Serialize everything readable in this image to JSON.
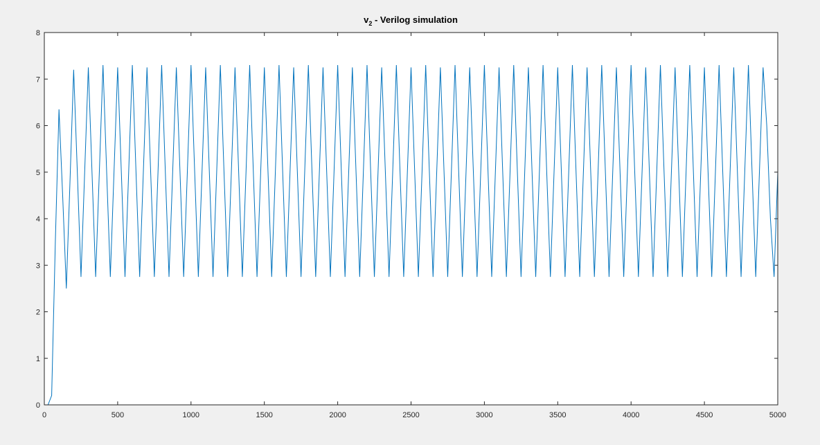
{
  "chart_data": {
    "type": "line",
    "title": "v",
    "title_subscript": "2",
    "title_rest": " - Verilog simulation",
    "xlim": [
      0,
      5000
    ],
    "ylim": [
      0,
      8
    ],
    "xticks": [
      0,
      500,
      1000,
      1500,
      2000,
      2500,
      3000,
      3500,
      4000,
      4500,
      5000
    ],
    "yticks": [
      0,
      1,
      2,
      3,
      4,
      5,
      6,
      7,
      8
    ],
    "color": "#0072bd",
    "x": [
      0,
      25,
      50,
      75,
      100,
      125,
      150,
      175,
      200,
      225,
      250,
      275,
      300,
      325,
      350,
      375,
      400,
      425,
      450,
      475,
      500,
      525,
      550,
      575,
      600,
      625,
      650,
      675,
      700,
      725,
      750,
      775,
      800,
      825,
      850,
      875,
      900,
      925,
      950,
      975,
      1000,
      1025,
      1050,
      1075,
      1100,
      1125,
      1150,
      1175,
      1200,
      1225,
      1250,
      1275,
      1300,
      1325,
      1350,
      1375,
      1400,
      1425,
      1450,
      1475,
      1500,
      1525,
      1550,
      1575,
      1600,
      1625,
      1650,
      1675,
      1700,
      1725,
      1750,
      1775,
      1800,
      1825,
      1850,
      1875,
      1900,
      1925,
      1950,
      1975,
      2000,
      2025,
      2050,
      2075,
      2100,
      2125,
      2150,
      2175,
      2200,
      2225,
      2250,
      2275,
      2300,
      2325,
      2350,
      2375,
      2400,
      2425,
      2450,
      2475,
      2500,
      2525,
      2550,
      2575,
      2600,
      2625,
      2650,
      2675,
      2700,
      2725,
      2750,
      2775,
      2800,
      2825,
      2850,
      2875,
      2900,
      2925,
      2950,
      2975,
      3000,
      3025,
      3050,
      3075,
      3100,
      3125,
      3150,
      3175,
      3200,
      3225,
      3250,
      3275,
      3300,
      3325,
      3350,
      3375,
      3400,
      3425,
      3450,
      3475,
      3500,
      3525,
      3550,
      3575,
      3600,
      3625,
      3650,
      3675,
      3700,
      3725,
      3750,
      3775,
      3800,
      3825,
      3850,
      3875,
      3900,
      3925,
      3950,
      3975,
      4000,
      4025,
      4050,
      4075,
      4100,
      4125,
      4150,
      4175,
      4200,
      4225,
      4250,
      4275,
      4300,
      4325,
      4350,
      4375,
      4400,
      4425,
      4450,
      4475,
      4500,
      4525,
      4550,
      4575,
      4600,
      4625,
      4650,
      4675,
      4700,
      4725,
      4750,
      4775,
      4800,
      4825,
      4850,
      4875,
      4900,
      4925,
      4950,
      4975,
      5000
    ],
    "values": [
      0,
      0,
      0.2,
      3.5,
      6.35,
      4.5,
      2.5,
      4.8,
      7.2,
      5,
      2.75,
      5,
      7.25,
      5,
      2.75,
      5,
      7.3,
      5,
      2.75,
      5,
      7.25,
      5,
      2.75,
      5,
      7.3,
      5,
      2.75,
      5,
      7.25,
      5,
      2.75,
      5,
      7.3,
      5,
      2.75,
      5,
      7.25,
      5,
      2.75,
      5,
      7.3,
      5,
      2.75,
      5,
      7.25,
      5,
      2.75,
      5,
      7.3,
      5,
      2.75,
      5,
      7.25,
      5,
      2.75,
      5,
      7.3,
      5,
      2.75,
      5,
      7.25,
      5,
      2.75,
      5,
      7.3,
      5,
      2.75,
      5,
      7.25,
      5,
      2.75,
      5,
      7.3,
      5,
      2.75,
      5,
      7.25,
      5,
      2.75,
      5,
      7.3,
      5,
      2.75,
      5,
      7.25,
      5,
      2.75,
      5,
      7.3,
      5,
      2.75,
      5,
      7.25,
      5,
      2.75,
      5,
      7.3,
      5,
      2.75,
      5,
      7.25,
      5,
      2.75,
      5,
      7.3,
      5,
      2.75,
      5,
      7.25,
      5,
      2.75,
      5,
      7.3,
      5,
      2.75,
      5,
      7.25,
      5,
      2.75,
      5,
      7.3,
      5,
      2.75,
      5,
      7.25,
      5,
      2.75,
      5,
      7.3,
      5,
      2.75,
      5,
      7.25,
      5,
      2.75,
      5,
      7.3,
      5,
      2.75,
      5,
      7.25,
      5,
      2.75,
      5,
      7.3,
      5,
      2.75,
      5,
      7.25,
      5,
      2.75,
      5,
      7.3,
      5,
      2.75,
      5,
      7.25,
      5,
      2.75,
      5,
      7.3,
      5,
      2.75,
      5,
      7.25,
      5,
      2.75,
      5,
      7.3,
      5,
      2.75,
      5,
      7.25,
      5,
      2.75,
      5,
      7.3,
      5,
      2.75,
      5,
      7.25,
      5,
      2.75,
      5,
      7.3,
      5,
      2.75,
      5,
      7.25,
      5,
      2.75,
      5,
      7.3,
      5,
      2.75,
      5,
      7.25,
      6,
      4,
      2.75,
      5
    ]
  }
}
